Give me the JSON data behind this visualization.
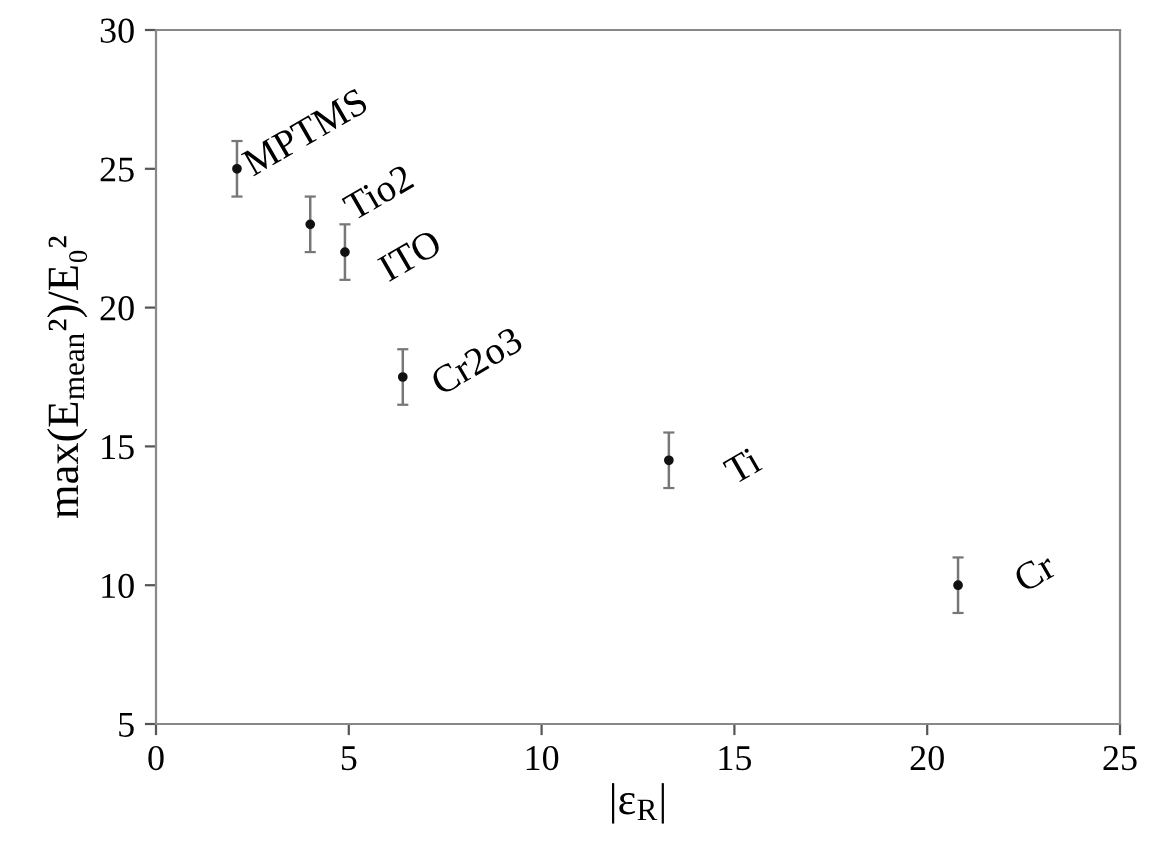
{
  "chart_data": {
    "type": "scatter",
    "xlabel": "|ε$_{R}$|",
    "ylabel": "max(E$_{mean}$²)/E₀²",
    "x": [
      2.1,
      4.0,
      4.9,
      6.4,
      13.3,
      20.8
    ],
    "series": [
      {
        "color": "#111111",
        "values": [
          25.0,
          23.0,
          22.0,
          17.5,
          14.5,
          10.0
        ],
        "errors": [
          1,
          1,
          1,
          1,
          1,
          1
        ]
      }
    ],
    "annotations": [
      {
        "text": "MPTMS",
        "x": 2.1,
        "y": 25.0
      },
      {
        "text": "Tio2",
        "x": 4.0,
        "y": 23.0
      },
      {
        "text": "ITO",
        "x": 4.9,
        "y": 22.0
      },
      {
        "text": "Cr2o3",
        "x": 6.4,
        "y": 17.5
      },
      {
        "text": "Ti",
        "x": 13.3,
        "y": 14.5
      },
      {
        "text": "Cr",
        "x": 20.8,
        "y": 10.0
      }
    ],
    "xlim": [
      0,
      25
    ],
    "ylim": [
      5,
      30
    ],
    "xticks": [
      0,
      5,
      10,
      15,
      20,
      25
    ],
    "yticks": [
      5,
      10,
      15,
      20,
      25,
      30
    ],
    "marker": "circle",
    "grid": false,
    "legend": false
  }
}
